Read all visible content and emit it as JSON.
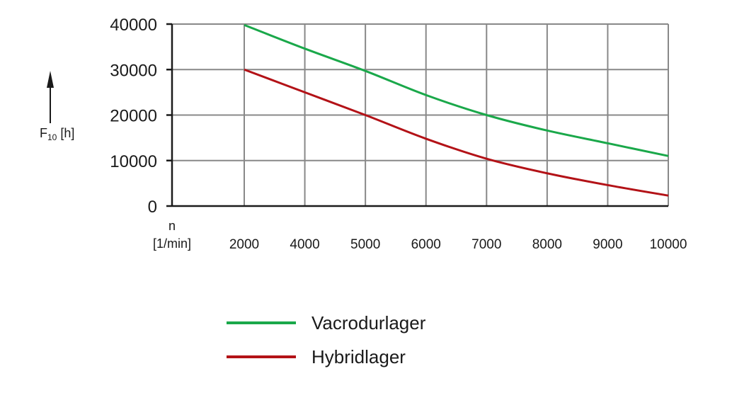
{
  "chart_data": {
    "type": "line",
    "x": [
      2000,
      4000,
      5000,
      6000,
      7000,
      8000,
      9000,
      10000
    ],
    "x_tick_labels": [
      "2000",
      "4000",
      "5000",
      "6000",
      "7000",
      "8000",
      "9000",
      "10000"
    ],
    "y_ticks": [
      0,
      10000,
      20000,
      30000,
      40000
    ],
    "y_tick_labels": [
      "0",
      "10000",
      "20000",
      "30000",
      "40000"
    ],
    "ylim": [
      0,
      40000
    ],
    "xlabel_line1": "n",
    "xlabel_line2": "[1/min]",
    "ylabel_main": "F",
    "ylabel_sub": "10",
    "ylabel_unit": " [h]",
    "grid": true,
    "legend_position": "bottom",
    "series": [
      {
        "name": "Vacrodurlager",
        "color": "#1aa84a",
        "values": [
          39800,
          34600,
          29700,
          24400,
          20000,
          16600,
          13800,
          11000
        ]
      },
      {
        "name": "Hybridlager",
        "color": "#b31217",
        "values": [
          30000,
          25000,
          20000,
          14800,
          10400,
          7200,
          4600,
          2300
        ]
      }
    ]
  },
  "colors": {
    "grid": "#888888",
    "axis": "#1a1a1a"
  }
}
